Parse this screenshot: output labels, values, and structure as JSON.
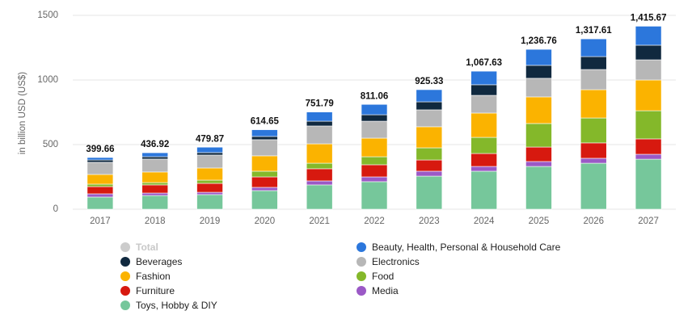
{
  "chart_data": {
    "type": "stacked_bar",
    "y_axis_label": "in billion USD (US$)",
    "categories": [
      "2017",
      "2018",
      "2019",
      "2020",
      "2021",
      "2022",
      "2023",
      "2024",
      "2025",
      "2026",
      "2027"
    ],
    "ylim": [
      0,
      1500
    ],
    "yticks": [
      0,
      500,
      1000,
      1500
    ],
    "grid": true,
    "total": {
      "name": "Total",
      "color": "#cccccc",
      "values": [
        399.66,
        436.92,
        479.87,
        614.65,
        751.79,
        811.06,
        925.33,
        1067.63,
        1236.76,
        1317.61,
        1415.67
      ],
      "value_labels": [
        "399.66",
        "436.92",
        "479.87",
        "614.65",
        "751.79",
        "811.06",
        "925.33",
        "1,067.63",
        "1,236.76",
        "1,317.61",
        "1,415.67"
      ]
    },
    "series": [
      {
        "name": "Toys, Hobby & DIY",
        "color": "#76c79b",
        "values": [
          94,
          106,
          113,
          144,
          188,
          213,
          256,
          294,
          331,
          356,
          387
        ]
      },
      {
        "name": "Media",
        "color": "#9b59c6",
        "values": [
          25,
          19,
          18,
          25,
          31,
          37,
          38,
          37,
          38,
          38,
          38
        ]
      },
      {
        "name": "Furniture",
        "color": "#d7190f",
        "values": [
          56,
          63,
          69,
          81,
          94,
          94,
          87,
          100,
          112,
          119,
          119
        ]
      },
      {
        "name": "Food",
        "color": "#84b82a",
        "values": [
          19,
          18,
          25,
          44,
          43,
          62,
          94,
          125,
          182,
          193,
          218
        ]
      },
      {
        "name": "Fashion",
        "color": "#fbb300",
        "values": [
          75,
          82,
          94,
          119,
          150,
          144,
          163,
          188,
          206,
          219,
          238
        ]
      },
      {
        "name": "Electronics",
        "color": "#b7b7b7",
        "values": [
          94,
          100,
          100,
          125,
          138,
          131,
          131,
          137,
          144,
          156,
          156
        ]
      },
      {
        "name": "Beverages",
        "color": "#10293f",
        "values": [
          18,
          18,
          19,
          25,
          37,
          50,
          62,
          82,
          100,
          100,
          113
        ]
      },
      {
        "name": "Beauty, Health, Personal & Household Care",
        "color": "#2c77dc",
        "values": [
          19,
          31,
          42,
          52,
          71,
          80,
          94,
          105,
          124,
          137,
          147
        ]
      }
    ]
  }
}
